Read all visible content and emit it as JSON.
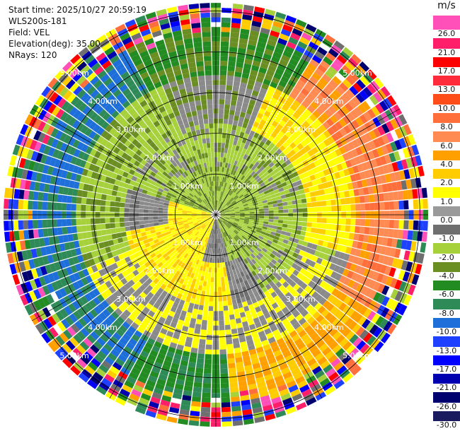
{
  "meta": {
    "start_time": "Start time: 2025/10/27 20:59:19",
    "instrument": "WLS200s-181",
    "field": "Field: VEL",
    "elevation": "Elevation(deg): 35.00",
    "nrays": "NRays: 120"
  },
  "scan": {
    "num_rays": 120,
    "max_range_km": 5.2,
    "range_rings_km": [
      1,
      2,
      3,
      4,
      5
    ],
    "ring_labels": [
      "1.00km",
      "2.00km",
      "3.00km",
      "4.00km",
      "5.00km"
    ]
  },
  "colorbar": {
    "unit": "m/s",
    "labels": [
      "26.0",
      "21.0",
      "17.0",
      "13.0",
      "10.0",
      "8.0",
      "6.0",
      "4.0",
      "2.0",
      "1.0",
      "0.0",
      "-1.0",
      "-2.0",
      "-4.0",
      "-6.0",
      "-8.0",
      "-10.0",
      "-13.0",
      "-17.0",
      "-21.0",
      "-26.0",
      "-30.0"
    ],
    "colors": [
      "#ff4fb8",
      "#ff1e6a",
      "#ff0000",
      "#ff2a3a",
      "#ff4d1a",
      "#ff6f3c",
      "#ff8a52",
      "#ff9f00",
      "#ffcc00",
      "#ffff00",
      "#9a9a9a",
      "#6f6f6f",
      "#a6d13a",
      "#6b8e23",
      "#228b22",
      "#2e8b57",
      "#1e6fd9",
      "#1e40ff",
      "#0000ff",
      "#0000b0",
      "#00006e",
      "#1a1a5e"
    ]
  }
}
